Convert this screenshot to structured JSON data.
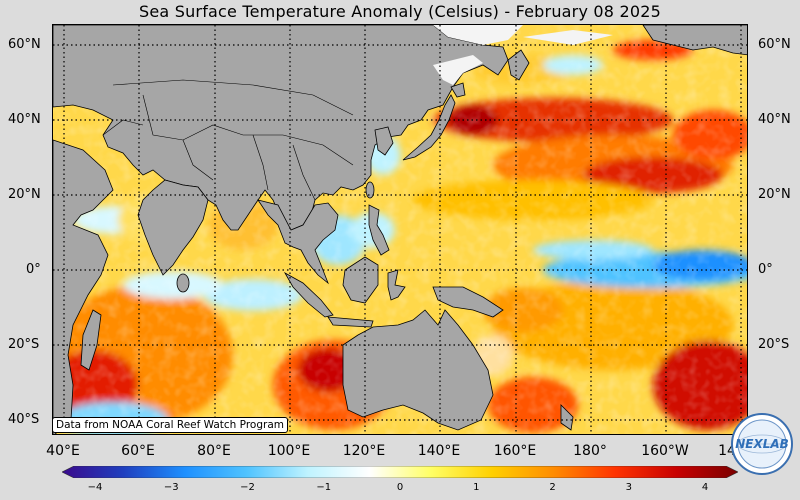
{
  "title": "Sea Surface Temperature Anomaly (Celsius) - February 08 2025",
  "credit": "Data from NOAA Coral Reef Watch Program",
  "logo_text": "NEXLAB",
  "lat_labels": [
    "60°N",
    "40°N",
    "20°N",
    "0°",
    "20°S",
    "40°S"
  ],
  "lon_labels": [
    "40°E",
    "60°E",
    "80°E",
    "100°E",
    "120°E",
    "140°E",
    "160°E",
    "180°",
    "160°W",
    "14"
  ],
  "colorbar": {
    "ticks": [
      "−4",
      "−3",
      "−2",
      "−1",
      "0",
      "1",
      "2",
      "3",
      "4"
    ],
    "min": -4,
    "max": 4,
    "colors": [
      "#3a0a8c",
      "#1f3fbf",
      "#1e90ff",
      "#4fc3ff",
      "#bff3ff",
      "#ffffff",
      "#ffff66",
      "#ffd000",
      "#ff8c00",
      "#ff3300",
      "#c80000",
      "#7a0000"
    ]
  },
  "map": {
    "land_color": "#a6a6a6",
    "grid_style": "dotted",
    "projection": "equirectangular"
  }
}
